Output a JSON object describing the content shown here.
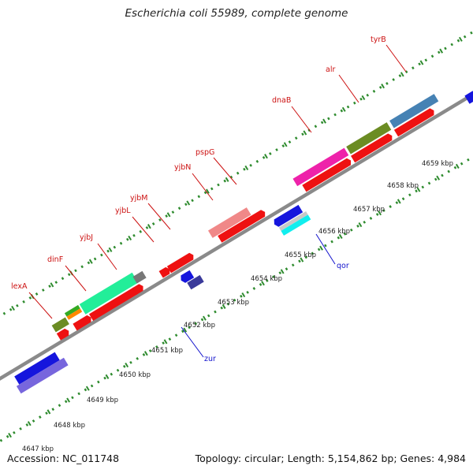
{
  "title": "Escherichia coli 55989, complete genome",
  "footer": {
    "accession": "Accession: NC_011748",
    "info": "Topology: circular; Length: 5,154,862 bp; Genes: 4,984"
  },
  "kbp_labels": [
    "4647 kbp",
    "4648 kbp",
    "4649 kbp",
    "4650 kbp",
    "4651 kbp",
    "4652 kbp",
    "4653 kbp",
    "4654 kbp",
    "4655 kbp",
    "4656 kbp",
    "4657 kbp",
    "4658 kbp",
    "4659 kbp"
  ],
  "gene_labels": [
    {
      "name": "lexA",
      "strand": "plus"
    },
    {
      "name": "dinF",
      "strand": "plus"
    },
    {
      "name": "yjbJ",
      "strand": "plus"
    },
    {
      "name": "yjbL",
      "strand": "plus"
    },
    {
      "name": "yjbM",
      "strand": "plus"
    },
    {
      "name": "yjbN",
      "strand": "plus"
    },
    {
      "name": "pspG",
      "strand": "plus"
    },
    {
      "name": "dnaB",
      "strand": "plus"
    },
    {
      "name": "alr",
      "strand": "plus"
    },
    {
      "name": "tyrB",
      "strand": "plus"
    },
    {
      "name": "zur",
      "strand": "minus"
    },
    {
      "name": "qor",
      "strand": "minus"
    }
  ],
  "colors": {
    "plus_label": "#cc1111",
    "minus_label": "#1111cc",
    "cds_red": "#ee1111",
    "dot_green": "#2e8b2e",
    "backbone": "#8a8a8a",
    "pink": "#ee22aa",
    "olive": "#6b8c23",
    "steelblue": "#4682b4",
    "salmon": "#f08888",
    "aquamarine": "#22ee99",
    "blue": "#1515dd",
    "darkslateblue": "#3a3a9a",
    "mediumslateblue": "#7766dd",
    "cyan": "#11eeee",
    "lightgray": "#c8c8c8",
    "orange": "#ff8800",
    "green": "#33aa22",
    "gray": "#777777"
  }
}
